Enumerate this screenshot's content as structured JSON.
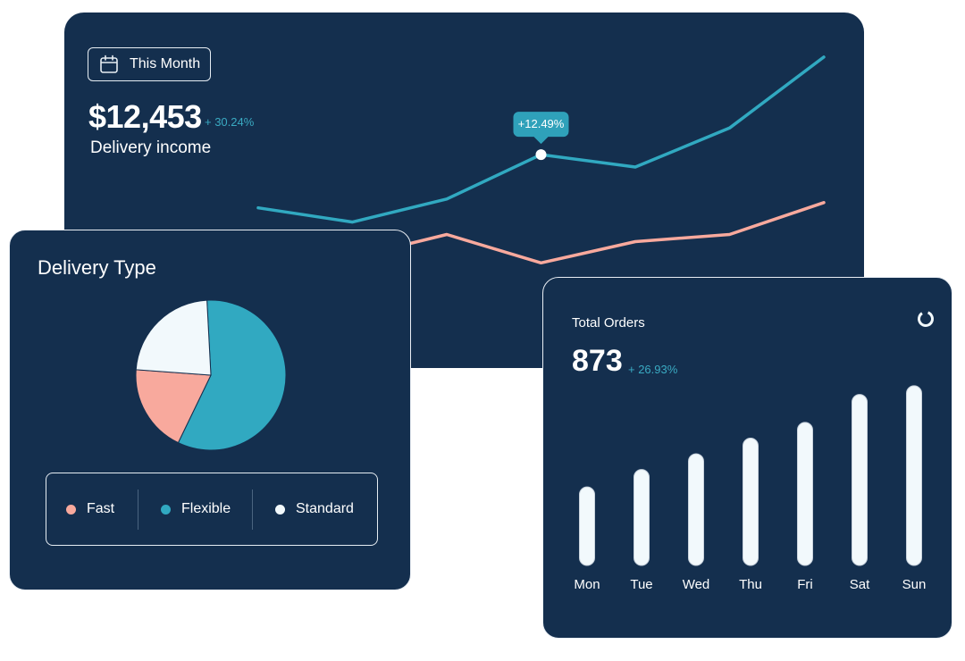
{
  "income_card": {
    "period_label": "This Month",
    "value": "$12,453",
    "change": "+ 30.24%",
    "label": "Delivery income",
    "tooltip": "+12.49%"
  },
  "delivery_type": {
    "title": "Delivery Type",
    "legend": [
      {
        "label": "Fast",
        "color": "#f8a99d"
      },
      {
        "label": "Flexible",
        "color": "#31a9c1"
      },
      {
        "label": "Standard",
        "color": "#f2f9fc"
      }
    ]
  },
  "orders_card": {
    "title": "Total Orders",
    "value": "873",
    "change": "+ 26.93%"
  },
  "colors": {
    "card_bg": "#142f4e",
    "teal": "#31a9c1",
    "salmon": "#f8a99d",
    "white": "#f2f9fc",
    "tooltip_bg": "#2fa1ba"
  },
  "icons": {
    "period": "calendar-icon",
    "orders": "refresh-icon"
  },
  "chart_data": [
    {
      "type": "line",
      "x": [
        1,
        2,
        3,
        4,
        5,
        6,
        7
      ],
      "series": [
        {
          "values": [
            55,
            47,
            60,
            85,
            78,
            100,
            140
          ]
        },
        {
          "values": [
            18,
            27,
            40,
            24,
            36,
            40,
            58
          ]
        }
      ],
      "ylim": [
        0,
        150
      ],
      "highlight": {
        "series": 0,
        "index": 3,
        "label": "+12.49%"
      },
      "grid": false
    },
    {
      "type": "pie",
      "categories": [
        "Flexible",
        "Fast",
        "Standard"
      ],
      "values": [
        58,
        19,
        23
      ],
      "colors": [
        "#31a9c1",
        "#f8a99d",
        "#f2f9fc"
      ]
    },
    {
      "type": "bar",
      "categories": [
        "Mon",
        "Tue",
        "Wed",
        "Thu",
        "Fri",
        "Sat",
        "Sun"
      ],
      "values": [
        45,
        55,
        64,
        73,
        82,
        98,
        103
      ],
      "ylim": [
        0,
        105
      ],
      "color": "#f2f9fc"
    }
  ]
}
